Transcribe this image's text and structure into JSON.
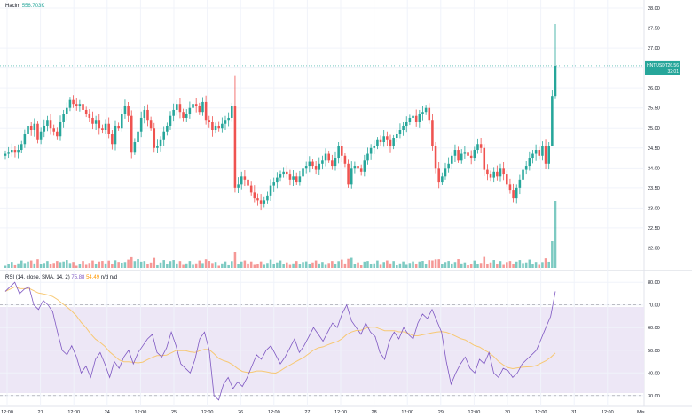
{
  "legend": {
    "volume_label": "Hacim",
    "volume_value": "556.703K",
    "rsi_label": "RSI (14, close, SMA, 14, 2)",
    "rsi_value": "75.88",
    "rsi_ma_value": "54.49",
    "rsi_extra": "n/d  n/d"
  },
  "price_tag": {
    "symbol": "HNTUSDT",
    "price": "26.56",
    "countdown": "32:01"
  },
  "price_axis": [
    "28.00",
    "27.50",
    "27.00",
    "26.50",
    "26.00",
    "25.50",
    "25.00",
    "24.50",
    "24.00",
    "23.50",
    "23.00",
    "22.50",
    "22.00"
  ],
  "rsi_axis": [
    "80.00",
    "70.00",
    "60.00",
    "50.00",
    "40.00",
    "30.00"
  ],
  "time_axis": [
    "12:00",
    "21",
    "12:00",
    "24",
    "12:00",
    "25",
    "12:00",
    "26",
    "12:00",
    "27",
    "12:00",
    "28",
    "12:00",
    "29",
    "12:00",
    "30",
    "12:00",
    "31",
    "12:00",
    "Mis"
  ],
  "colors": {
    "up": "#26a69a",
    "down": "#ef5350",
    "rsi_line": "#7e57c2",
    "rsi_ma": "#f7c873",
    "band": "#ede7f6",
    "grid": "#f0f3fa"
  },
  "chart_data": {
    "type": "candlestick",
    "y_range": [
      21.5,
      28.2
    ],
    "closes": [
      24.35,
      24.4,
      24.45,
      24.4,
      24.45,
      24.6,
      24.85,
      25.05,
      24.95,
      25.1,
      24.7,
      24.9,
      25.05,
      25.2,
      25.0,
      24.9,
      24.8,
      25.15,
      25.35,
      25.5,
      25.7,
      25.6,
      25.55,
      25.6,
      25.45,
      25.35,
      25.25,
      25.1,
      25.2,
      25.0,
      24.95,
      25.1,
      24.85,
      24.6,
      25.05,
      25.0,
      25.35,
      25.55,
      25.3,
      24.4,
      24.65,
      24.9,
      25.25,
      25.45,
      25.2,
      25.0,
      24.5,
      24.55,
      24.7,
      24.9,
      25.05,
      25.3,
      25.45,
      25.6,
      25.4,
      25.25,
      25.35,
      25.5,
      25.6,
      25.55,
      25.4,
      25.65,
      25.2,
      25.15,
      24.95,
      25.05,
      25.0,
      25.1,
      25.2,
      25.25,
      25.55,
      23.5,
      23.6,
      23.8,
      23.7,
      23.55,
      23.4,
      23.25,
      23.2,
      23.1,
      23.2,
      23.3,
      23.55,
      23.65,
      23.75,
      23.85,
      23.9,
      23.85,
      23.7,
      23.8,
      23.65,
      23.8,
      24.0,
      24.05,
      24.15,
      24.05,
      23.95,
      24.1,
      24.2,
      24.35,
      24.2,
      24.05,
      24.25,
      24.55,
      24.3,
      24.1,
      23.6,
      24.0,
      24.05,
      24.0,
      23.9,
      24.2,
      24.35,
      24.5,
      24.55,
      24.7,
      24.65,
      24.8,
      24.7,
      24.55,
      24.75,
      24.85,
      24.95,
      25.05,
      25.15,
      25.25,
      25.3,
      25.15,
      25.35,
      25.4,
      25.5,
      25.2,
      24.55,
      24.0,
      23.65,
      23.8,
      24.0,
      24.1,
      24.3,
      24.45,
      24.2,
      24.35,
      24.4,
      24.3,
      24.25,
      24.45,
      24.6,
      24.5,
      23.95,
      23.85,
      23.75,
      23.9,
      23.8,
      24.0,
      23.85,
      23.6,
      23.45,
      23.25,
      23.5,
      23.7,
      23.95,
      24.05,
      24.25,
      24.35,
      24.45,
      24.3,
      24.55,
      24.1,
      24.55,
      25.8,
      26.56
    ],
    "rsi": [
      76,
      78,
      80,
      75,
      77,
      78,
      70,
      68,
      72,
      70,
      67,
      58,
      50,
      48,
      52,
      47,
      40,
      43,
      38,
      46,
      49,
      44,
      38,
      45,
      42,
      47,
      50,
      44,
      49,
      52,
      55,
      57,
      49,
      47,
      51,
      58,
      52,
      44,
      42,
      40,
      46,
      55,
      58,
      50,
      30,
      28,
      35,
      38,
      33,
      36,
      34,
      38,
      43,
      48,
      46,
      50,
      52,
      48,
      44,
      47,
      51,
      55,
      49,
      52,
      56,
      60,
      57,
      54,
      58,
      62,
      60,
      66,
      70,
      63,
      60,
      57,
      62,
      58,
      56,
      49,
      46,
      54,
      58,
      55,
      60,
      57,
      55,
      62,
      66,
      64,
      68,
      63,
      58,
      45,
      35,
      40,
      44,
      47,
      42,
      40,
      46,
      44,
      49,
      40,
      38,
      42,
      41,
      38,
      40,
      44,
      46,
      48,
      50,
      55,
      60,
      65,
      76
    ]
  }
}
